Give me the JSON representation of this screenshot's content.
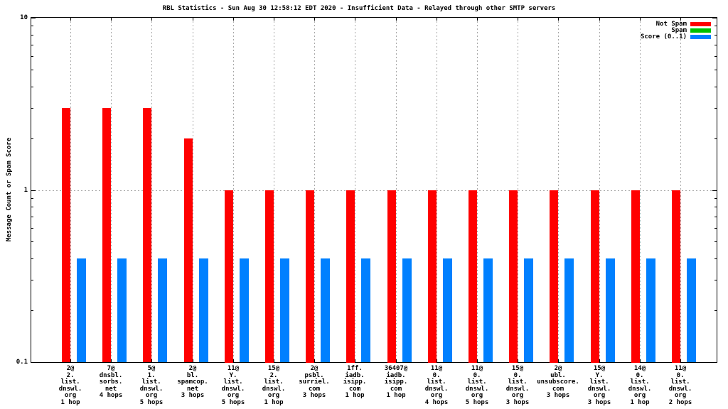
{
  "legend": [
    {
      "label": "Not Spam",
      "color": "#ff0000"
    },
    {
      "label": "Spam",
      "color": "#00c000"
    },
    {
      "label": "Score (0..1)",
      "color": "#0080ff"
    }
  ],
  "chart_data": {
    "type": "bar",
    "title": "RBL Statistics - Sun Aug 30 12:58:12 EDT 2020 - Insufficient Data - Relayed through other SMTP servers",
    "ylabel": "Message Count or Spam Score",
    "y_scale": "log",
    "ylim": [
      0.1,
      10
    ],
    "yticks": [
      0.1,
      1,
      10
    ],
    "ytick_labels": [
      "0.1",
      "1",
      "10"
    ],
    "y_minor_ticks": [
      0.2,
      0.3,
      0.4,
      0.5,
      0.6,
      0.7,
      0.8,
      0.9,
      2,
      3,
      4,
      5,
      6,
      7,
      8,
      9
    ],
    "grid": {
      "horizontal_line_at": 1,
      "vertical_lines": "at each category center",
      "style": "dotted gray"
    },
    "legend_position": "top-right-inside",
    "categories": [
      [
        "2@",
        "2.",
        "list.",
        "dnswl.",
        "org",
        "1 hop"
      ],
      [
        "7@",
        "dnsbl.",
        "sorbs.",
        "net",
        "4 hops"
      ],
      [
        "5@",
        "1.",
        "list.",
        "dnswl.",
        "org",
        "5 hops"
      ],
      [
        "2@",
        "bl.",
        "spamcop.",
        "net",
        "3 hops"
      ],
      [
        "11@",
        "Y.",
        "list.",
        "dnswl.",
        "org",
        "5 hops"
      ],
      [
        "15@",
        "2.",
        "list.",
        "dnswl.",
        "org",
        "1 hop"
      ],
      [
        "2@",
        "psbl.",
        "surriel.",
        "com",
        "3 hops"
      ],
      [
        "1ff.",
        "iadb.",
        "isipp.",
        "com",
        "1 hop"
      ],
      [
        "36407@",
        "iadb.",
        "isipp.",
        "com",
        "1 hop"
      ],
      [
        "11@",
        "0.",
        "list.",
        "dnswl.",
        "org",
        "4 hops"
      ],
      [
        "11@",
        "0.",
        "list.",
        "dnswl.",
        "org",
        "5 hops"
      ],
      [
        "15@",
        "0.",
        "list.",
        "dnswl.",
        "org",
        "3 hops"
      ],
      [
        "2@",
        "ubl.",
        "unsubscore.",
        "com",
        "3 hops"
      ],
      [
        "15@",
        "Y.",
        "list.",
        "dnswl.",
        "org",
        "3 hops"
      ],
      [
        "14@",
        "0.",
        "list.",
        "dnswl.",
        "org",
        "1 hop"
      ],
      [
        "11@",
        "0.",
        "list.",
        "dnswl.",
        "org",
        "2 hops"
      ]
    ],
    "series": [
      {
        "name": "Not Spam",
        "color": "#ff0000",
        "values": [
          3,
          3,
          3,
          2,
          1,
          1,
          1,
          1,
          1,
          1,
          1,
          1,
          1,
          1,
          1,
          1
        ]
      },
      {
        "name": "Spam",
        "color": "#00c000",
        "values": [
          0,
          0,
          0,
          0,
          0,
          0,
          0,
          0,
          0,
          0,
          0,
          0,
          0,
          0,
          0,
          0
        ]
      },
      {
        "name": "Score (0..1)",
        "color": "#0080ff",
        "values": [
          0.4,
          0.4,
          0.4,
          0.4,
          0.4,
          0.4,
          0.4,
          0.4,
          0.4,
          0.4,
          0.4,
          0.4,
          0.4,
          0.4,
          0.4,
          0.4
        ]
      }
    ]
  }
}
